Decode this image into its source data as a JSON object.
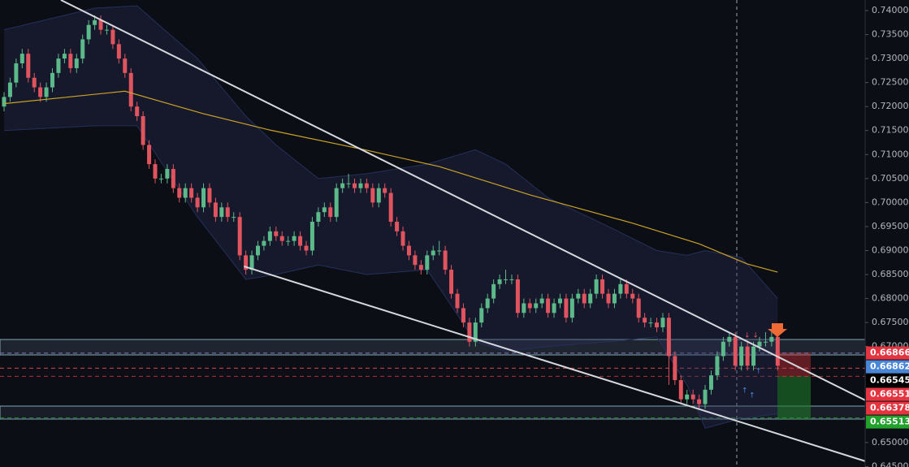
{
  "chart_data": {
    "type": "candlestick",
    "up_color": "#5cb98a",
    "down_color": "#e0545f",
    "open": 0.72,
    "close": [
      0.722,
      0.725,
      0.729,
      0.731,
      0.726,
      0.724,
      0.722,
      0.724,
      0.727,
      0.73,
      0.731,
      0.728,
      0.73,
      0.734,
      0.737,
      0.738,
      0.736,
      0.736,
      0.733,
      0.73,
      0.727,
      0.72,
      0.718,
      0.712,
      0.708,
      0.705,
      0.705,
      0.707,
      0.703,
      0.701,
      0.703,
      0.701,
      0.699,
      0.703,
      0.7,
      0.697,
      0.699,
      0.697,
      0.697,
      0.689,
      0.686,
      0.689,
      0.691,
      0.692,
      0.694,
      0.693,
      0.692,
      0.692,
      0.693,
      0.691,
      0.69,
      0.696,
      0.698,
      0.699,
      0.697,
      0.703,
      0.704,
      0.704,
      0.703,
      0.704,
      0.703,
      0.7,
      0.703,
      0.702,
      0.696,
      0.694,
      0.691,
      0.689,
      0.687,
      0.686,
      0.689,
      0.69,
      0.69,
      0.686,
      0.681,
      0.678,
      0.675,
      0.671,
      0.675,
      0.678,
      0.68,
      0.683,
      0.684,
      0.684,
      0.684,
      0.677,
      0.679,
      0.678,
      0.679,
      0.68,
      0.677,
      0.679,
      0.68,
      0.676,
      0.68,
      0.681,
      0.679,
      0.681,
      0.684,
      0.681,
      0.679,
      0.681,
      0.683,
      0.681,
      0.68,
      0.676,
      0.675,
      0.675,
      0.674,
      0.676,
      0.668,
      0.663,
      0.659,
      0.66,
      0.659,
      0.658,
      0.661,
      0.664,
      0.668,
      0.671,
      0.672,
      0.666,
      0.67,
      0.666,
      0.67,
      0.671,
      0.671,
      0.672,
      0.666
    ],
    "high": [
      0.723,
      0.726,
      0.73,
      0.732,
      0.732,
      0.727,
      0.725,
      0.725,
      0.728,
      0.731,
      0.732,
      0.732,
      0.731,
      0.735,
      0.738,
      0.739,
      0.739,
      0.737,
      0.737,
      0.734,
      0.731,
      0.728,
      0.721,
      0.719,
      0.713,
      0.709,
      0.706,
      0.708,
      0.708,
      0.704,
      0.704,
      0.704,
      0.702,
      0.704,
      0.704,
      0.701,
      0.7,
      0.7,
      0.698,
      0.698,
      0.69,
      0.69,
      0.692,
      0.693,
      0.695,
      0.695,
      0.694,
      0.693,
      0.694,
      0.694,
      0.692,
      0.697,
      0.699,
      0.7,
      0.7,
      0.704,
      0.705,
      0.706,
      0.705,
      0.705,
      0.705,
      0.704,
      0.704,
      0.704,
      0.703,
      0.697,
      0.695,
      0.692,
      0.69,
      0.688,
      0.69,
      0.691,
      0.692,
      0.691,
      0.687,
      0.682,
      0.679,
      0.676,
      0.676,
      0.679,
      0.681,
      0.684,
      0.685,
      0.686,
      0.685,
      0.685,
      0.68,
      0.68,
      0.68,
      0.681,
      0.681,
      0.68,
      0.681,
      0.681,
      0.681,
      0.682,
      0.682,
      0.682,
      0.685,
      0.685,
      0.682,
      0.682,
      0.684,
      0.684,
      0.682,
      0.681,
      0.677,
      0.676,
      0.676,
      0.677,
      0.677,
      0.669,
      0.664,
      0.661,
      0.661,
      0.66,
      0.662,
      0.665,
      0.669,
      0.672,
      0.673,
      0.673,
      0.671,
      0.671,
      0.671,
      0.672,
      0.673,
      0.673,
      0.673
    ],
    "low": [
      0.719,
      0.721,
      0.724,
      0.728,
      0.725,
      0.723,
      0.721,
      0.721,
      0.723,
      0.726,
      0.729,
      0.727,
      0.727,
      0.729,
      0.733,
      0.736,
      0.735,
      0.735,
      0.732,
      0.729,
      0.726,
      0.719,
      0.717,
      0.711,
      0.707,
      0.704,
      0.704,
      0.704,
      0.702,
      0.7,
      0.7,
      0.7,
      0.698,
      0.698,
      0.699,
      0.696,
      0.696,
      0.696,
      0.696,
      0.688,
      0.685,
      0.685,
      0.688,
      0.69,
      0.691,
      0.692,
      0.691,
      0.691,
      0.691,
      0.69,
      0.689,
      0.689,
      0.695,
      0.697,
      0.696,
      0.696,
      0.702,
      0.703,
      0.702,
      0.702,
      0.702,
      0.699,
      0.699,
      0.701,
      0.695,
      0.693,
      0.69,
      0.688,
      0.686,
      0.685,
      0.685,
      0.688,
      0.689,
      0.685,
      0.68,
      0.677,
      0.674,
      0.67,
      0.67,
      0.674,
      0.677,
      0.679,
      0.682,
      0.683,
      0.683,
      0.676,
      0.676,
      0.677,
      0.677,
      0.678,
      0.676,
      0.676,
      0.678,
      0.675,
      0.675,
      0.679,
      0.678,
      0.678,
      0.68,
      0.68,
      0.678,
      0.678,
      0.68,
      0.68,
      0.679,
      0.675,
      0.674,
      0.674,
      0.673,
      0.673,
      0.662,
      0.662,
      0.658,
      0.658,
      0.658,
      0.657,
      0.657,
      0.66,
      0.663,
      0.667,
      0.67,
      0.665,
      0.665,
      0.665,
      0.665,
      0.669,
      0.67,
      0.67,
      0.665
    ],
    "moving_average": {
      "color": "#c9a227",
      "x": [
        0,
        20,
        33,
        44,
        60,
        72,
        87,
        104,
        115,
        123,
        128
      ],
      "values": [
        0.7206,
        0.7232,
        0.7185,
        0.7151,
        0.7109,
        0.7075,
        0.7016,
        0.6957,
        0.6914,
        0.6872,
        0.6855
      ]
    },
    "bands": {
      "color": "#2a2f55",
      "x": [
        0,
        15,
        22,
        32,
        40,
        45,
        52,
        60,
        70,
        78,
        83,
        90,
        100,
        108,
        113,
        116,
        122,
        128
      ],
      "upper": [
        0.736,
        0.7405,
        0.741,
        0.73,
        0.718,
        0.712,
        0.705,
        0.706,
        0.708,
        0.711,
        0.708,
        0.701,
        0.695,
        0.69,
        0.689,
        0.69,
        0.6885,
        0.68
      ],
      "lower": [
        0.715,
        0.716,
        0.716,
        0.697,
        0.684,
        0.685,
        0.687,
        0.685,
        0.686,
        0.671,
        0.669,
        0.67,
        0.671,
        0.672,
        0.662,
        0.653,
        0.655,
        0.656
      ]
    },
    "trendlines": [
      {
        "x": [
          9.4,
          142.5
        ],
        "values": [
          0.7422,
          0.6588
        ]
      },
      {
        "x": [
          39.7,
          142.5
        ],
        "values": [
          0.6867,
          0.6461
        ]
      }
    ],
    "levels": [
      {
        "value": 0.66866,
        "color": "#e5343f"
      },
      {
        "value": 0.66862,
        "color": "#4a86d8"
      },
      {
        "value": 0.66545,
        "color": "#000000"
      },
      {
        "value": 0.66551,
        "color": "#e5343f"
      },
      {
        "value": 0.66378,
        "color": "#e5343f"
      },
      {
        "value": 0.65513,
        "color": "#22a22c"
      }
    ],
    "ylim": [
      0.6449,
      0.7422
    ],
    "yticks": [
      {
        "value": 0.74,
        "label": "0.74000"
      },
      {
        "value": 0.735,
        "label": "0.73500"
      },
      {
        "value": 0.73,
        "label": "0.73000"
      },
      {
        "value": 0.725,
        "label": "0.72500"
      },
      {
        "value": 0.72,
        "label": "0.72000"
      },
      {
        "value": 0.715,
        "label": "0.71500"
      },
      {
        "value": 0.71,
        "label": "0.71000"
      },
      {
        "value": 0.705,
        "label": "0.70500"
      },
      {
        "value": 0.7,
        "label": "0.70000"
      },
      {
        "value": 0.695,
        "label": "0.69500"
      },
      {
        "value": 0.69,
        "label": "0.69000"
      },
      {
        "value": 0.685,
        "label": "0.68500"
      },
      {
        "value": 0.68,
        "label": "0.68000"
      },
      {
        "value": 0.675,
        "label": "0.67500"
      },
      {
        "value": 0.67,
        "label": "0.67000"
      },
      {
        "value": 0.65,
        "label": "0.65000"
      },
      {
        "value": 0.645,
        "label": "0.64500"
      }
    ]
  }
}
